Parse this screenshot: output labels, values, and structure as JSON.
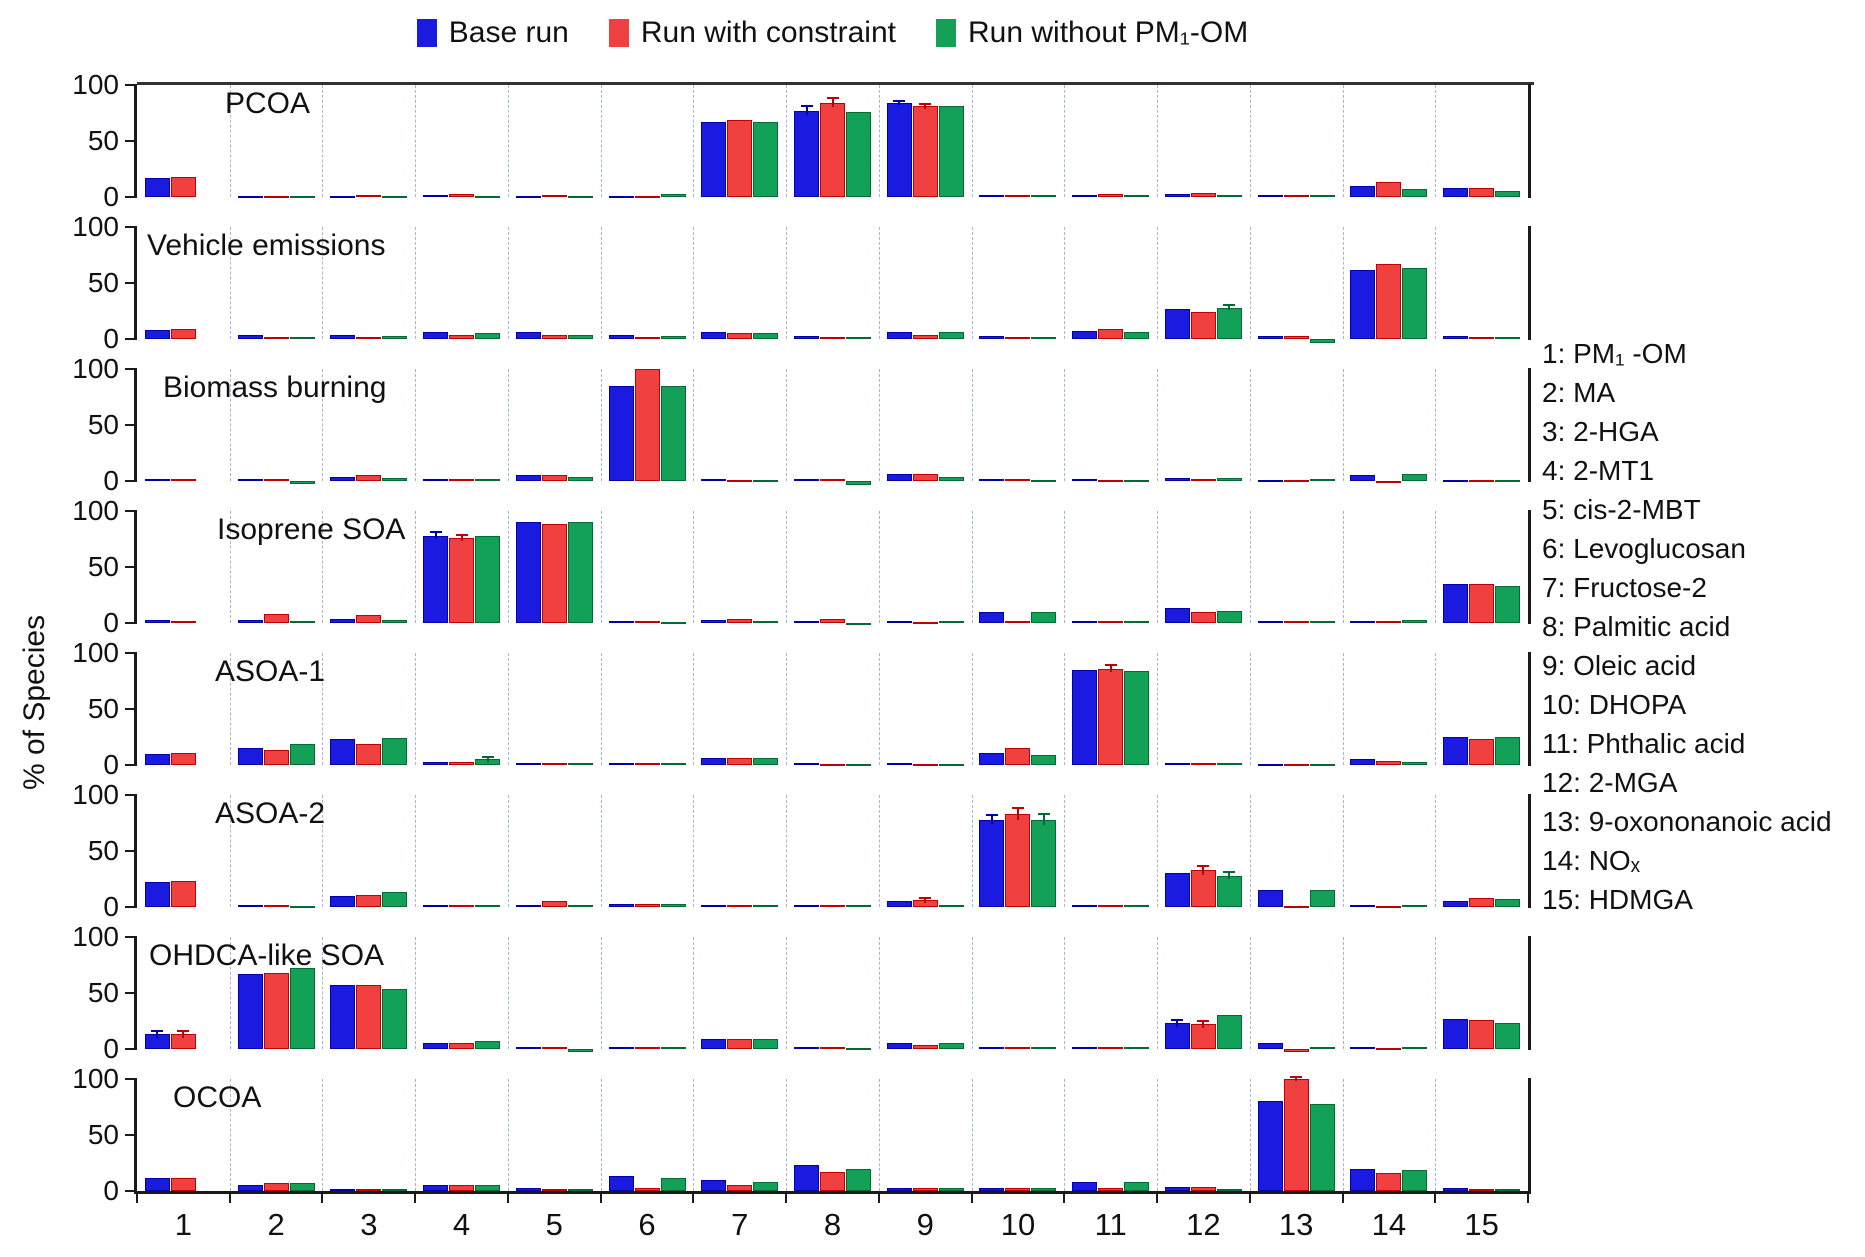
{
  "legend": {
    "items": [
      {
        "label": "Base run",
        "color": "#1a1ae0",
        "edge": "#0000a8"
      },
      {
        "label": "Run with constraint",
        "color": "#f04040",
        "edge": "#c00000"
      },
      {
        "label": "Run without PM₁-OM",
        "color": "#12a157",
        "edge": "#006b35"
      }
    ]
  },
  "ylabel": "% of Species",
  "species_list": [
    "1: PM₁ -OM",
    "2: MA",
    "3: 2-HGA",
    "4: 2-MT1",
    "5: cis-2-MBT",
    "6: Levoglucosan",
    "7: Fructose-2",
    "8: Palmitic acid",
    "9: Oleic acid",
    "10: DHOPA",
    "11: Phthalic acid",
    "12: 2-MGA",
    "13: 9-oxononanoic acid",
    "14: NOₓ",
    "15: HDMGA"
  ],
  "chart_data": {
    "type": "bar",
    "categories": [
      "1",
      "2",
      "3",
      "4",
      "5",
      "6",
      "7",
      "8",
      "9",
      "10",
      "11",
      "12",
      "13",
      "14",
      "15"
    ],
    "yticks": [
      "100",
      "50",
      "0"
    ],
    "ylim": [
      0,
      100
    ],
    "grid": "vertical-dashed",
    "legend_position": "top-center",
    "series_names": [
      "Base run",
      "Run with constraint",
      "Run without PM₁-OM"
    ],
    "panels": [
      {
        "title": "PCOA",
        "series": [
          {
            "name": "Base run",
            "values": [
              17,
              1,
              1,
              2,
              1,
              1,
              67,
              77,
              84,
              2,
              2,
              3,
              2,
              10,
              8
            ]
          },
          {
            "name": "Run with constraint",
            "values": [
              18,
              1,
              2,
              3,
              2,
              1,
              69,
              84,
              81,
              2,
              3,
              4,
              2,
              13,
              8
            ]
          },
          {
            "name": "Run without PM₁-OM",
            "values": [
              0,
              1,
              1,
              1,
              1,
              3,
              67,
              76,
              81,
              2,
              2,
              2,
              2,
              7,
              5
            ]
          }
        ],
        "errors": {
          "8": [
            4,
            4,
            0
          ],
          "9": [
            2,
            2,
            0
          ]
        }
      },
      {
        "title": "Vehicle emissions",
        "series": [
          {
            "name": "Base run",
            "values": [
              8,
              4,
              4,
              6,
              6,
              4,
              6,
              3,
              6,
              3,
              7,
              27,
              3,
              62,
              3
            ]
          },
          {
            "name": "Run with constraint",
            "values": [
              9,
              2,
              2,
              4,
              4,
              2,
              5,
              2,
              4,
              2,
              9,
              24,
              3,
              67,
              2
            ]
          },
          {
            "name": "Run without PM₁-OM",
            "values": [
              0,
              2,
              3,
              5,
              4,
              3,
              5,
              2,
              6,
              2,
              6,
              28,
              -4,
              63,
              2
            ]
          }
        ],
        "errors": {
          "12": [
            0,
            0,
            2
          ]
        }
      },
      {
        "title": "Biomass burning",
        "series": [
          {
            "name": "Base run",
            "values": [
              2,
              2,
              4,
              2,
              5,
              85,
              2,
              2,
              6,
              2,
              2,
              3,
              1,
              5,
              1
            ]
          },
          {
            "name": "Run with constraint",
            "values": [
              2,
              2,
              5,
              2,
              5,
              100,
              1,
              2,
              6,
              2,
              1,
              2,
              1,
              -2,
              1
            ]
          },
          {
            "name": "Run without PM₁-OM",
            "values": [
              0,
              -3,
              3,
              2,
              4,
              85,
              1,
              -4,
              4,
              1,
              1,
              3,
              2,
              6,
              1
            ]
          }
        ],
        "errors": {}
      },
      {
        "title": "Isoprene SOA",
        "series": [
          {
            "name": "Base run",
            "values": [
              3,
              3,
              4,
              78,
              90,
              2,
              3,
              2,
              2,
              10,
              2,
              13,
              2,
              2,
              35
            ]
          },
          {
            "name": "Run with constraint",
            "values": [
              2,
              8,
              7,
              76,
              88,
              2,
              4,
              4,
              1,
              2,
              2,
              10,
              2,
              2,
              35
            ]
          },
          {
            "name": "Run without PM₁-OM",
            "values": [
              0,
              2,
              3,
              78,
              90,
              1,
              2,
              -2,
              2,
              10,
              2,
              11,
              2,
              3,
              33
            ]
          }
        ],
        "errors": {
          "4": [
            3,
            3,
            0
          ]
        }
      },
      {
        "title": "ASOA-1",
        "series": [
          {
            "name": "Base run",
            "values": [
              10,
              15,
              23,
              3,
              2,
              2,
              6,
              2,
              2,
              11,
              85,
              2,
              1,
              5,
              25
            ]
          },
          {
            "name": "Run with constraint",
            "values": [
              11,
              13,
              19,
              3,
              2,
              2,
              6,
              1,
              1,
              15,
              86,
              2,
              1,
              4,
              23
            ]
          },
          {
            "name": "Run without PM₁-OM",
            "values": [
              0,
              19,
              24,
              5,
              2,
              2,
              6,
              1,
              1,
              9,
              84,
              2,
              1,
              3,
              25
            ]
          }
        ],
        "errors": {
          "4": [
            0,
            0,
            2
          ],
          "11": [
            0,
            3,
            0
          ]
        }
      },
      {
        "title": "ASOA-2",
        "series": [
          {
            "name": "Base run",
            "values": [
              22,
              2,
              10,
              2,
              2,
              3,
              2,
              2,
              5,
              78,
              2,
              30,
              15,
              2,
              5
            ]
          },
          {
            "name": "Run with constraint",
            "values": [
              23,
              2,
              11,
              2,
              5,
              3,
              2,
              2,
              6,
              83,
              2,
              33,
              1,
              1,
              8
            ]
          },
          {
            "name": "Run without PM₁-OM",
            "values": [
              0,
              1,
              13,
              2,
              2,
              3,
              2,
              2,
              2,
              78,
              2,
              28,
              15,
              2,
              7
            ]
          }
        ],
        "errors": {
          "9": [
            0,
            2,
            0
          ],
          "10": [
            4,
            5,
            5
          ],
          "12": [
            0,
            4,
            3
          ]
        }
      },
      {
        "title": "OHDCA-like SOA",
        "series": [
          {
            "name": "Base run",
            "values": [
              13,
              67,
              57,
              5,
              2,
              2,
              9,
              2,
              5,
              2,
              2,
              23,
              5,
              2,
              27
            ]
          },
          {
            "name": "Run with constraint",
            "values": [
              13,
              68,
              57,
              5,
              2,
              2,
              9,
              2,
              4,
              2,
              2,
              22,
              -3,
              1,
              26
            ]
          },
          {
            "name": "Run without PM₁-OM",
            "values": [
              0,
              72,
              54,
              7,
              -3,
              2,
              9,
              1,
              5,
              2,
              2,
              30,
              2,
              2,
              23
            ]
          }
        ],
        "errors": {
          "1": [
            3,
            3,
            0
          ],
          "12": [
            3,
            3,
            0
          ]
        }
      },
      {
        "title": "OCOA",
        "series": [
          {
            "name": "Base run",
            "values": [
              12,
              5,
              2,
              5,
              3,
              13,
              10,
              23,
              3,
              3,
              8,
              4,
              80,
              20,
              3
            ]
          },
          {
            "name": "Run with constraint",
            "values": [
              12,
              7,
              2,
              5,
              2,
              3,
              5,
              17,
              3,
              3,
              3,
              4,
              100,
              16,
              2
            ]
          },
          {
            "name": "Run without PM₁-OM",
            "values": [
              0,
              7,
              2,
              5,
              2,
              12,
              8,
              20,
              3,
              3,
              8,
              2,
              78,
              19,
              2
            ]
          }
        ],
        "errors": {
          "13": [
            0,
            2,
            0
          ]
        }
      }
    ]
  }
}
